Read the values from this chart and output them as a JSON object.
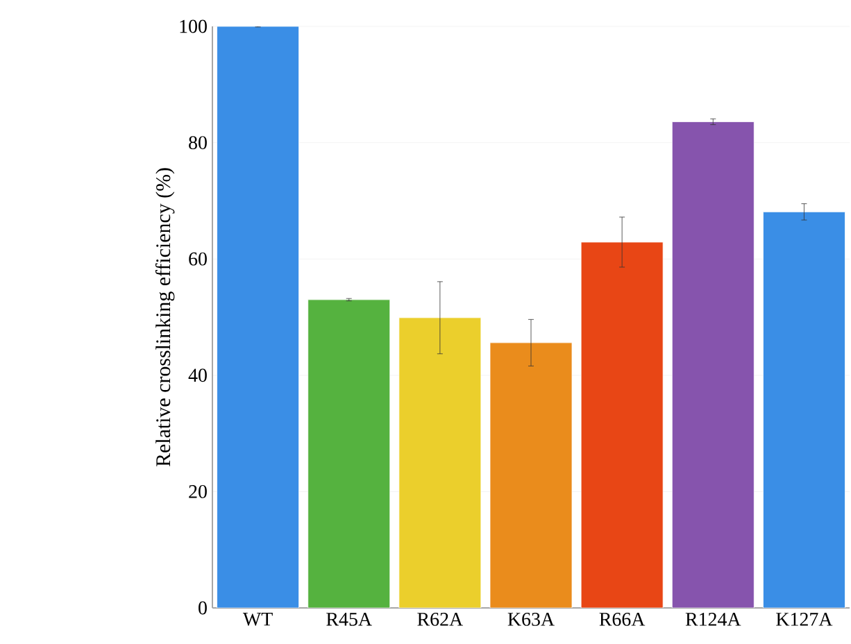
{
  "chart_data": {
    "type": "bar",
    "ylabel": "Relative crosslinking efficiency (%)",
    "categories": [
      "WT",
      "R45A",
      "R62A",
      "K63A",
      "R66A",
      "R124A",
      "K127A"
    ],
    "values": [
      100,
      53.0,
      49.9,
      45.6,
      62.9,
      83.6,
      68.1
    ],
    "errors": [
      0.1,
      0.2,
      6.2,
      4.0,
      4.3,
      0.5,
      1.4
    ],
    "colors": [
      "#3a8ee6",
      "#55b23f",
      "#ebcf2c",
      "#ea8c1c",
      "#e84615",
      "#8654ad",
      "#3a8ee6"
    ],
    "ylim": [
      0,
      100
    ],
    "yticks": [
      0,
      20,
      40,
      60,
      80,
      100
    ],
    "grid": "y"
  }
}
